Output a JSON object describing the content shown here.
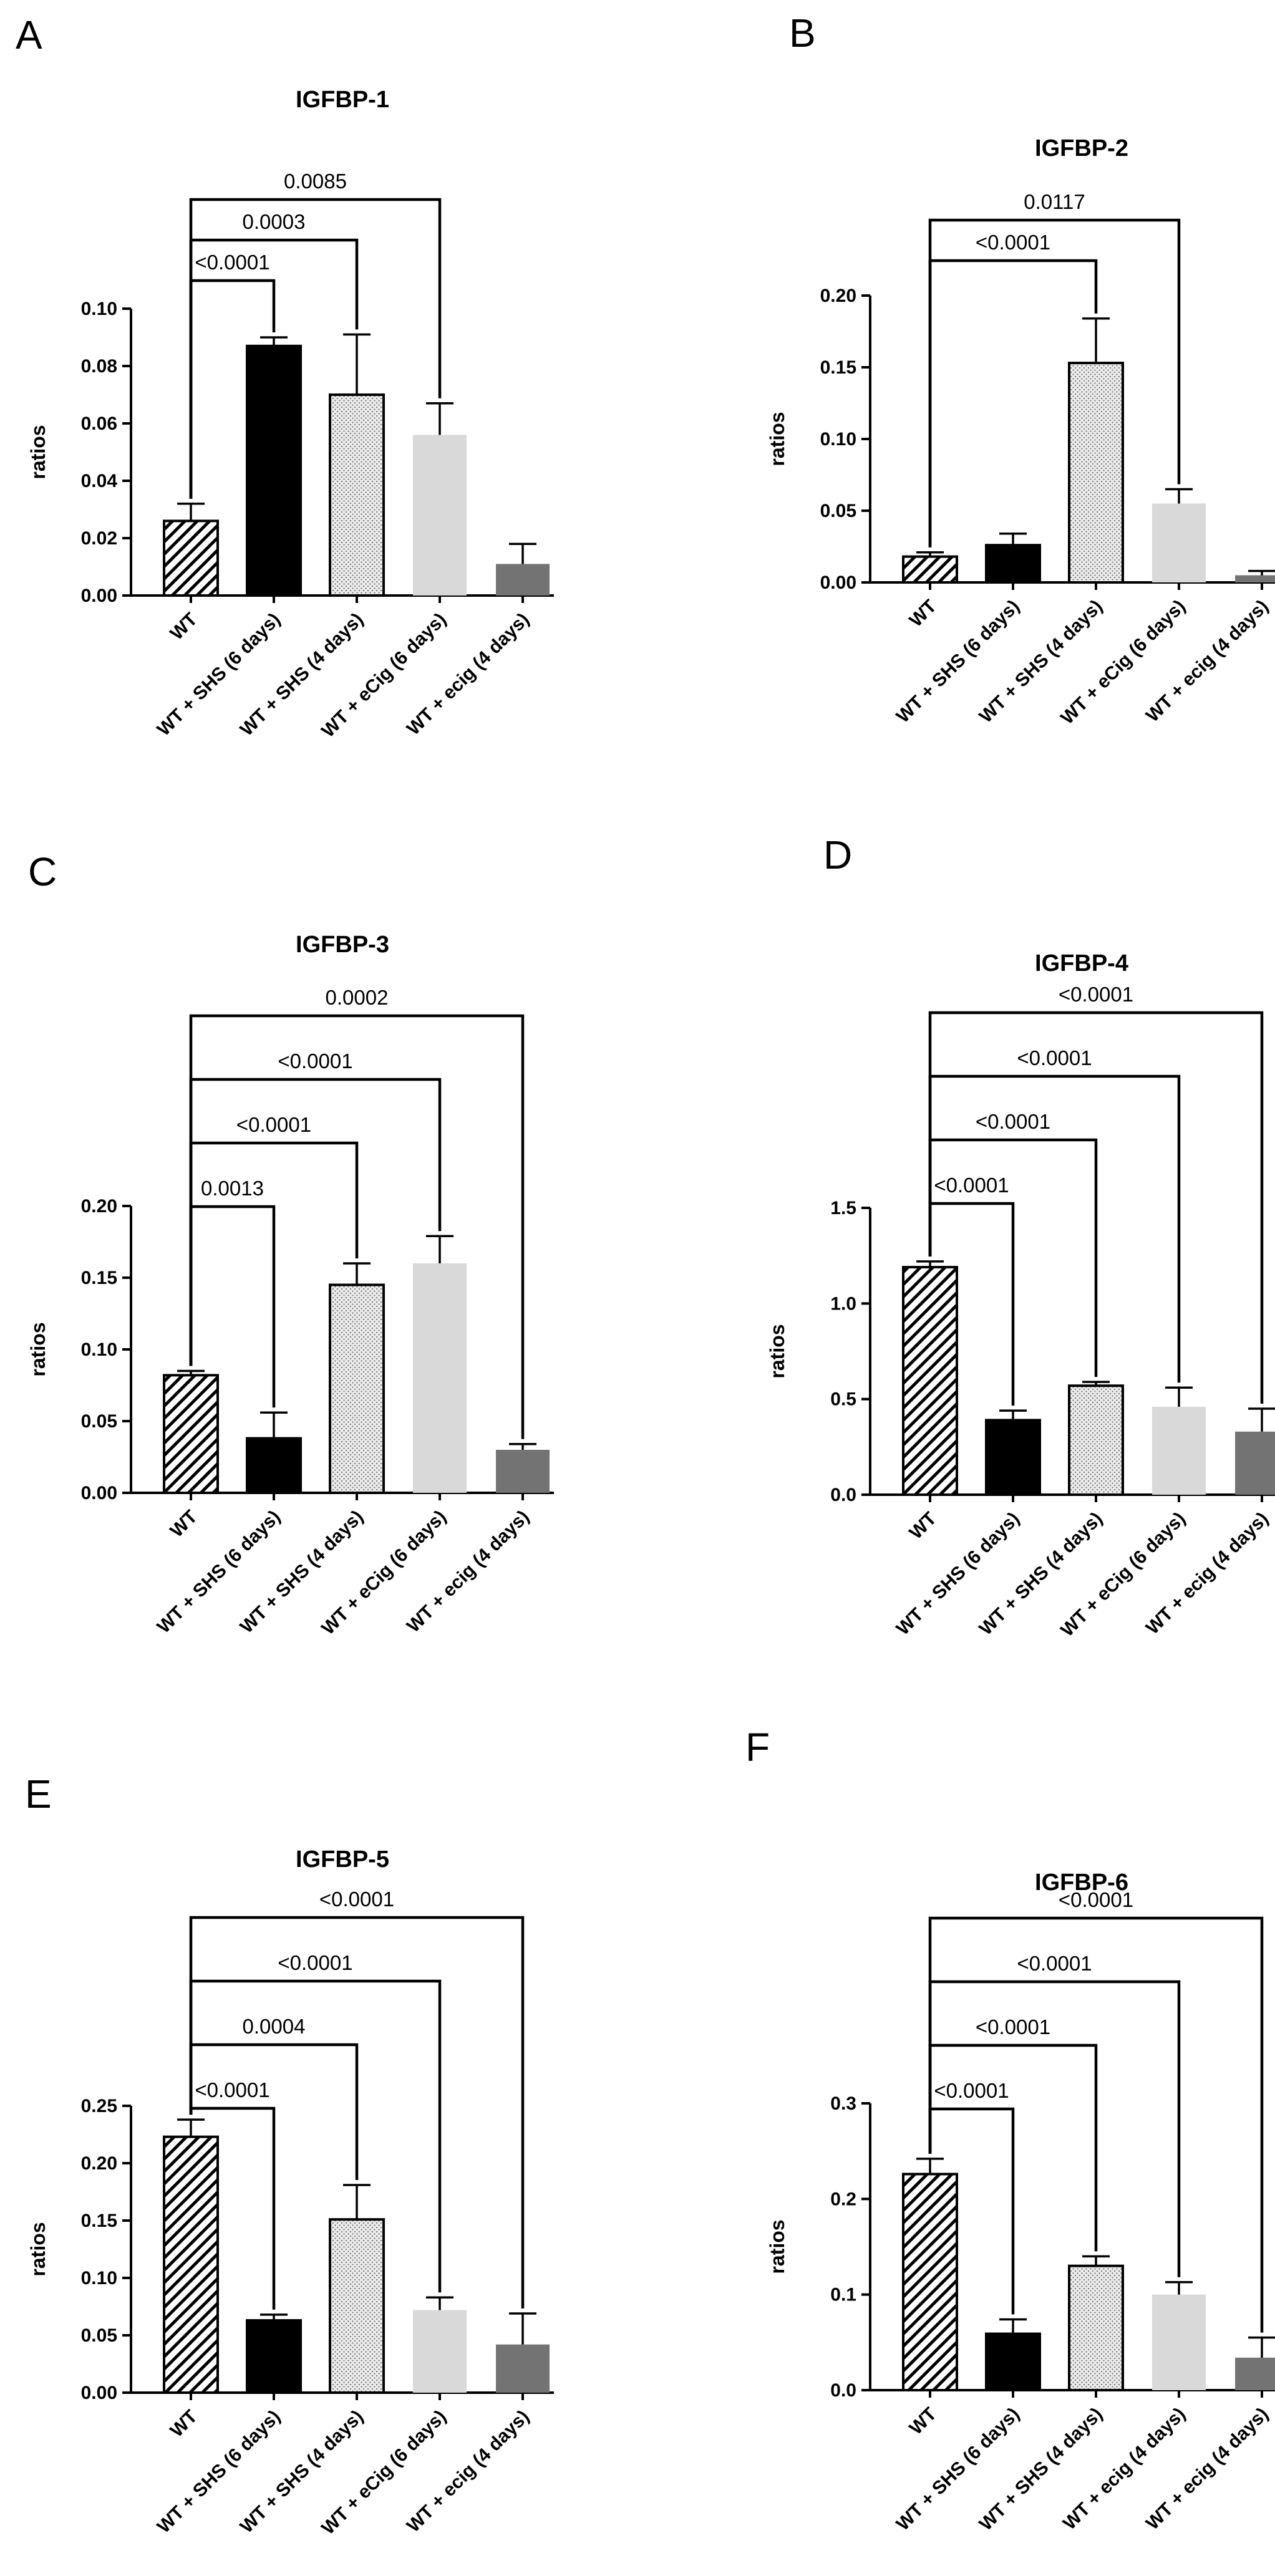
{
  "panel_letters": [
    "A",
    "B",
    "C",
    "D",
    "E",
    "F"
  ],
  "colors": {
    "wt_hatch": "#000000",
    "shs6": "#000000",
    "shs4_dots": "#ebebeb",
    "ecig6": "#d9d9d9",
    "ecig4": "#737373"
  },
  "chart_data": [
    {
      "type": "bar",
      "panel": "A",
      "title": "IGFBP-1",
      "ylabel": "ratios",
      "xlabel": "",
      "categories": [
        "WT",
        "WT + SHS (6 days)",
        "WT + SHS (4 days)",
        "WT + eCig (6 days)",
        "WT + ecig (4 days)"
      ],
      "values": [
        0.026,
        0.087,
        0.07,
        0.056,
        0.011
      ],
      "errors": [
        0.006,
        0.003,
        0.021,
        0.011,
        0.007
      ],
      "ylim": [
        0,
        0.1
      ],
      "yticks": [
        "0.00",
        "0.02",
        "0.04",
        "0.06",
        "0.08",
        "0.10"
      ],
      "significance": [
        {
          "from": 0,
          "to": 1,
          "label": "<0.0001"
        },
        {
          "from": 0,
          "to": 2,
          "label": "0.0003"
        },
        {
          "from": 0,
          "to": 3,
          "label": "0.0085"
        }
      ]
    },
    {
      "type": "bar",
      "panel": "B",
      "title": "IGFBP-2",
      "ylabel": "ratios",
      "xlabel": "",
      "categories": [
        "WT",
        "WT + SHS (6 days)",
        "WT + SHS (4 days)",
        "WT + eCig (6 days)",
        "WT + ecig (4 days)"
      ],
      "values": [
        0.018,
        0.026,
        0.153,
        0.055,
        0.005
      ],
      "errors": [
        0.003,
        0.008,
        0.031,
        0.01,
        0.003
      ],
      "ylim": [
        0,
        0.2
      ],
      "yticks": [
        "0.00",
        "0.05",
        "0.10",
        "0.15",
        "0.20"
      ],
      "significance": [
        {
          "from": 0,
          "to": 2,
          "label": "<0.0001"
        },
        {
          "from": 0,
          "to": 3,
          "label": "0.0117"
        }
      ]
    },
    {
      "type": "bar",
      "panel": "C",
      "title": "IGFBP-3",
      "ylabel": "ratios",
      "xlabel": "",
      "categories": [
        "WT",
        "WT + SHS (6 days)",
        "WT + SHS (4 days)",
        "WT + eCig (6 days)",
        "WT + ecig (4 days)"
      ],
      "values": [
        0.082,
        0.038,
        0.145,
        0.16,
        0.03
      ],
      "errors": [
        0.003,
        0.018,
        0.015,
        0.019,
        0.004
      ],
      "ylim": [
        0,
        0.2
      ],
      "yticks": [
        "0.00",
        "0.05",
        "0.10",
        "0.15",
        "0.20"
      ],
      "significance": [
        {
          "from": 0,
          "to": 1,
          "label": "0.0013"
        },
        {
          "from": 0,
          "to": 2,
          "label": "<0.0001"
        },
        {
          "from": 0,
          "to": 3,
          "label": "<0.0001"
        },
        {
          "from": 0,
          "to": 4,
          "label": "0.0002"
        }
      ]
    },
    {
      "type": "bar",
      "panel": "D",
      "title": "IGFBP-4",
      "ylabel": "ratios",
      "xlabel": "",
      "categories": [
        "WT",
        "WT + SHS (6 days)",
        "WT + SHS (4 days)",
        "WT + eCig (6 days)",
        "WT + ecig (4 days)"
      ],
      "values": [
        1.19,
        0.39,
        0.57,
        0.46,
        0.33
      ],
      "errors": [
        0.03,
        0.05,
        0.02,
        0.1,
        0.12
      ],
      "ylim": [
        0,
        1.5
      ],
      "yticks": [
        "0.0",
        "0.5",
        "1.0",
        "1.5"
      ],
      "significance": [
        {
          "from": 0,
          "to": 1,
          "label": "<0.0001"
        },
        {
          "from": 0,
          "to": 2,
          "label": "<0.0001"
        },
        {
          "from": 0,
          "to": 3,
          "label": "<0.0001"
        },
        {
          "from": 0,
          "to": 4,
          "label": "<0.0001"
        }
      ]
    },
    {
      "type": "bar",
      "panel": "E",
      "title": "IGFBP-5",
      "ylabel": "ratios",
      "xlabel": "",
      "categories": [
        "WT",
        "WT + SHS (6 days)",
        "WT + SHS (4 days)",
        "WT + eCig (6 days)",
        "WT + ecig (4 days)"
      ],
      "values": [
        0.223,
        0.063,
        0.151,
        0.072,
        0.042
      ],
      "errors": [
        0.015,
        0.005,
        0.03,
        0.011,
        0.027
      ],
      "ylim": [
        0,
        0.25
      ],
      "yticks": [
        "0.00",
        "0.05",
        "0.10",
        "0.15",
        "0.20",
        "0.25"
      ],
      "significance": [
        {
          "from": 0,
          "to": 1,
          "label": "<0.0001"
        },
        {
          "from": 0,
          "to": 2,
          "label": "0.0004"
        },
        {
          "from": 0,
          "to": 3,
          "label": "<0.0001"
        },
        {
          "from": 0,
          "to": 4,
          "label": "<0.0001"
        }
      ]
    },
    {
      "type": "bar",
      "panel": "F",
      "title": "IGFBP-6",
      "ylabel": "ratios",
      "xlabel": "",
      "categories": [
        "WT",
        "WT + SHS (6 days)",
        "WT + SHS (4 days)",
        "WT + ecig (4 days)",
        "WT + ecig (4 days)"
      ],
      "values": [
        0.226,
        0.059,
        0.13,
        0.1,
        0.034
      ],
      "errors": [
        0.016,
        0.015,
        0.01,
        0.013,
        0.021
      ],
      "ylim": [
        0,
        0.3
      ],
      "yticks": [
        "0.0",
        "0.1",
        "0.2",
        "0.3"
      ],
      "significance": [
        {
          "from": 0,
          "to": 1,
          "label": "<0.0001"
        },
        {
          "from": 0,
          "to": 2,
          "label": "<0.0001"
        },
        {
          "from": 0,
          "to": 3,
          "label": "<0.0001"
        },
        {
          "from": 0,
          "to": 4,
          "label": "<0.0001"
        }
      ]
    }
  ]
}
